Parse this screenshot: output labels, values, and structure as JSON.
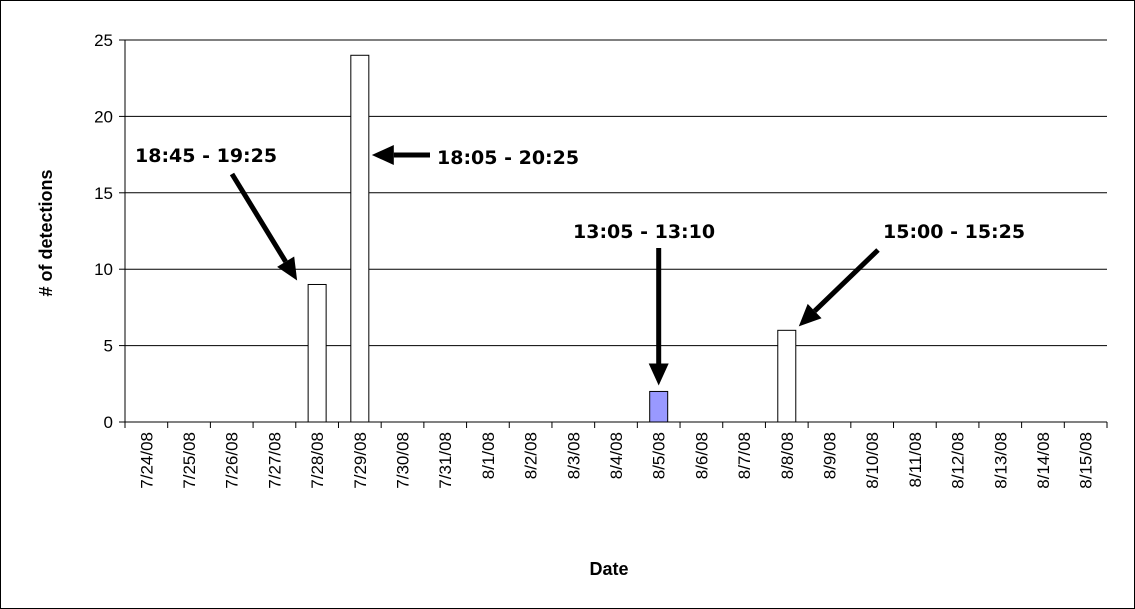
{
  "chart_data": {
    "type": "bar",
    "categories": [
      "7/24/08",
      "7/25/08",
      "7/26/08",
      "7/27/08",
      "7/28/08",
      "7/29/08",
      "7/30/08",
      "7/31/08",
      "8/1/08",
      "8/2/08",
      "8/3/08",
      "8/4/08",
      "8/5/08",
      "8/6/08",
      "8/7/08",
      "8/8/08",
      "8/9/08",
      "8/10/08",
      "8/11/08",
      "8/12/08",
      "8/13/08",
      "8/14/08",
      "8/15/08"
    ],
    "values": [
      0,
      0,
      0,
      0,
      9,
      24,
      0,
      0,
      0,
      0,
      0,
      0,
      2,
      0,
      0,
      6,
      0,
      0,
      0,
      0,
      0,
      0,
      0
    ],
    "xlabel": "Date",
    "ylabel": "# of detections",
    "ylim": [
      0,
      25
    ],
    "yticks": [
      0,
      5,
      10,
      15,
      20,
      25
    ],
    "grid": true,
    "bar_color": "#ffffff",
    "highlight_color": "#9999ff",
    "highlight_category": "8/5/08",
    "annotations": [
      {
        "text": "18:45 - 19:25",
        "target": "7/28/08"
      },
      {
        "text": "18:05 - 20:25",
        "target": "7/29/08"
      },
      {
        "text": "13:05 - 13:10",
        "target": "8/5/08"
      },
      {
        "text": "15:00 - 15:25",
        "target": "8/8/08"
      }
    ]
  }
}
